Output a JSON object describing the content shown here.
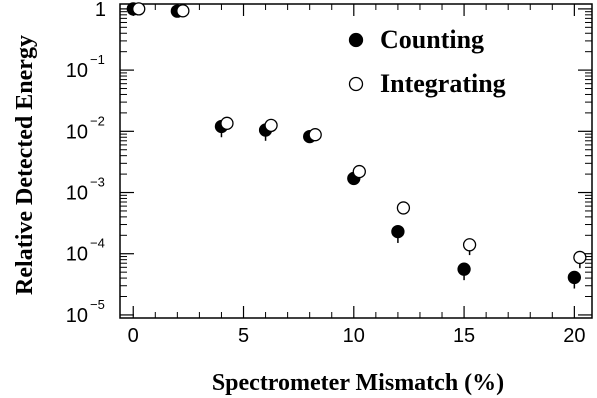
{
  "chart_data": {
    "type": "scatter",
    "xlabel": "Spectrometer Mismatch (%)",
    "ylabel": "Relative Detected Energy",
    "xlim": [
      -0.6,
      20.8
    ],
    "ylim_log10": [
      -5.05,
      0.08
    ],
    "yscale": "log",
    "x_ticks": [
      0,
      5,
      10,
      15,
      20
    ],
    "y_ticks": [
      {
        "value": 1,
        "base": "1",
        "exp": ""
      },
      {
        "value": 0.1,
        "base": "10",
        "exp": "−1"
      },
      {
        "value": 0.01,
        "base": "10",
        "exp": "−2"
      },
      {
        "value": 0.001,
        "base": "10",
        "exp": "−3"
      },
      {
        "value": 0.0001,
        "base": "10",
        "exp": "−4"
      },
      {
        "value": 1e-05,
        "base": "10",
        "exp": "−5"
      }
    ],
    "grid": false,
    "legend_position": "top-right",
    "series": [
      {
        "name": "Counting",
        "marker": "filled-circle",
        "color": "#000000",
        "points": [
          {
            "x": 0,
            "y": 1.0
          },
          {
            "x": 2,
            "y": 0.92
          },
          {
            "x": 4,
            "y": 0.012,
            "err_low": 0.008
          },
          {
            "x": 6,
            "y": 0.0105,
            "err_low": 0.007
          },
          {
            "x": 8,
            "y": 0.0082
          },
          {
            "x": 10,
            "y": 0.0017
          },
          {
            "x": 12,
            "y": 0.00023,
            "err_low": 0.00015
          },
          {
            "x": 15,
            "y": 5.6e-05,
            "err_low": 3.7e-05
          },
          {
            "x": 20,
            "y": 4.1e-05,
            "err_low": 2.7e-05
          }
        ]
      },
      {
        "name": "Integrating",
        "marker": "open-circle",
        "color": "#000000",
        "points": [
          {
            "x": 0.25,
            "y": 1.0
          },
          {
            "x": 2.25,
            "y": 0.93
          },
          {
            "x": 4.25,
            "y": 0.0135
          },
          {
            "x": 6.25,
            "y": 0.0125
          },
          {
            "x": 8.25,
            "y": 0.0088
          },
          {
            "x": 10.25,
            "y": 0.0022
          },
          {
            "x": 12.25,
            "y": 0.00056
          },
          {
            "x": 15.25,
            "y": 0.00014,
            "err_low": 9.5e-05
          },
          {
            "x": 20.25,
            "y": 8.7e-05,
            "err_low": 5.8e-05
          }
        ]
      }
    ]
  }
}
